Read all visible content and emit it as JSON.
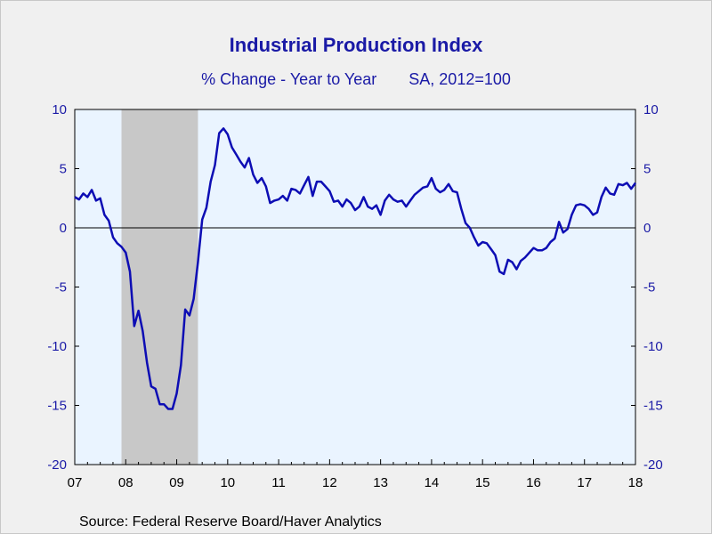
{
  "chart_data": {
    "type": "line",
    "title": "Industrial Production Index",
    "subtitle_left": "% Change - Year to Year",
    "subtitle_right": "SA, 2012=100",
    "source": "Source:  Federal Reserve Board/Haver Analytics",
    "xlabel": "",
    "ylabel": "",
    "ylim": [
      -20,
      10
    ],
    "y_ticks": [
      10,
      5,
      0,
      -5,
      -10,
      -15,
      -20
    ],
    "y_tick_labels": [
      "10",
      "5",
      "0",
      "-5",
      "-10",
      "-15",
      "-20"
    ],
    "x_tick_labels": [
      "07",
      "08",
      "09",
      "10",
      "11",
      "12",
      "13",
      "14",
      "15",
      "16",
      "17",
      "18"
    ],
    "x_range": [
      2007.0,
      2018.0
    ],
    "recession_band": [
      2007.917,
      2009.417
    ],
    "grid": false,
    "zero_line": true,
    "colors": {
      "line": "#0d0db4",
      "axis_text": "#1a1aa6",
      "plot_bg": "#eaf4ff",
      "recession": "#c8c8c8",
      "frame_bg": "#f0f0f0"
    },
    "series": [
      {
        "x": [
          2007.0,
          2007.083,
          2007.167,
          2007.25,
          2007.333,
          2007.417,
          2007.5,
          2007.583,
          2007.667,
          2007.75,
          2007.833,
          2007.917,
          2008.0,
          2008.083,
          2008.167,
          2008.25,
          2008.333,
          2008.417,
          2008.5,
          2008.583,
          2008.667,
          2008.75,
          2008.833,
          2008.917,
          2009.0,
          2009.083,
          2009.167,
          2009.25,
          2009.333,
          2009.417,
          2009.5,
          2009.583,
          2009.667,
          2009.75,
          2009.833,
          2009.917,
          2010.0,
          2010.083,
          2010.167,
          2010.25,
          2010.333,
          2010.417,
          2010.5,
          2010.583,
          2010.667,
          2010.75,
          2010.833,
          2010.917,
          2011.0,
          2011.083,
          2011.167,
          2011.25,
          2011.333,
          2011.417,
          2011.5,
          2011.583,
          2011.667,
          2011.75,
          2011.833,
          2011.917,
          2012.0,
          2012.083,
          2012.167,
          2012.25,
          2012.333,
          2012.417,
          2012.5,
          2012.583,
          2012.667,
          2012.75,
          2012.833,
          2012.917,
          2013.0,
          2013.083,
          2013.167,
          2013.25,
          2013.333,
          2013.417,
          2013.5,
          2013.583,
          2013.667,
          2013.75,
          2013.833,
          2013.917,
          2014.0,
          2014.083,
          2014.167,
          2014.25,
          2014.333,
          2014.417,
          2014.5,
          2014.583,
          2014.667,
          2014.75,
          2014.833,
          2014.917,
          2015.0,
          2015.083,
          2015.167,
          2015.25,
          2015.333,
          2015.417,
          2015.5,
          2015.583,
          2015.667,
          2015.75,
          2015.833,
          2015.917,
          2016.0,
          2016.083,
          2016.167,
          2016.25,
          2016.333,
          2016.417,
          2016.5,
          2016.583,
          2016.667,
          2016.75,
          2016.833,
          2016.917,
          2017.0,
          2017.083,
          2017.167,
          2017.25,
          2017.333,
          2017.417,
          2017.5,
          2017.583,
          2017.667,
          2017.75,
          2017.833,
          2017.917,
          2018.0
        ],
        "values": [
          2.6,
          2.4,
          2.9,
          2.6,
          3.2,
          2.3,
          2.5,
          1.1,
          0.6,
          -0.8,
          -1.3,
          -1.6,
          -2.1,
          -3.7,
          -8.3,
          -7.0,
          -8.7,
          -11.4,
          -13.4,
          -13.6,
          -14.9,
          -14.9,
          -15.3,
          -15.3,
          -14.0,
          -11.6,
          -6.9,
          -7.4,
          -6.0,
          -2.9,
          0.7,
          1.7,
          3.9,
          5.3,
          8.0,
          8.4,
          7.9,
          6.8,
          6.2,
          5.6,
          5.1,
          5.9,
          4.5,
          3.8,
          4.2,
          3.5,
          2.1,
          2.3,
          2.4,
          2.7,
          2.3,
          3.3,
          3.2,
          2.9,
          3.6,
          4.3,
          2.7,
          3.9,
          3.9,
          3.5,
          3.1,
          2.2,
          2.3,
          1.8,
          2.4,
          2.1,
          1.5,
          1.8,
          2.6,
          1.8,
          1.6,
          1.9,
          1.1,
          2.3,
          2.8,
          2.4,
          2.2,
          2.3,
          1.8,
          2.3,
          2.8,
          3.1,
          3.4,
          3.5,
          4.2,
          3.3,
          3.0,
          3.2,
          3.7,
          3.1,
          3.0,
          1.6,
          0.4,
          0.0,
          -0.8,
          -1.5,
          -1.2,
          -1.3,
          -1.8,
          -2.3,
          -3.7,
          -3.9,
          -2.7,
          -2.9,
          -3.5,
          -2.8,
          -2.5,
          -2.1,
          -1.7,
          -1.9,
          -1.9,
          -1.7,
          -1.2,
          -0.9,
          0.5,
          -0.4,
          -0.1,
          1.1,
          1.9,
          2.0,
          1.9,
          1.6,
          1.1,
          1.3,
          2.6,
          3.4,
          2.9,
          2.8,
          3.7,
          3.6,
          3.8,
          3.3,
          3.8
        ]
      }
    ]
  }
}
